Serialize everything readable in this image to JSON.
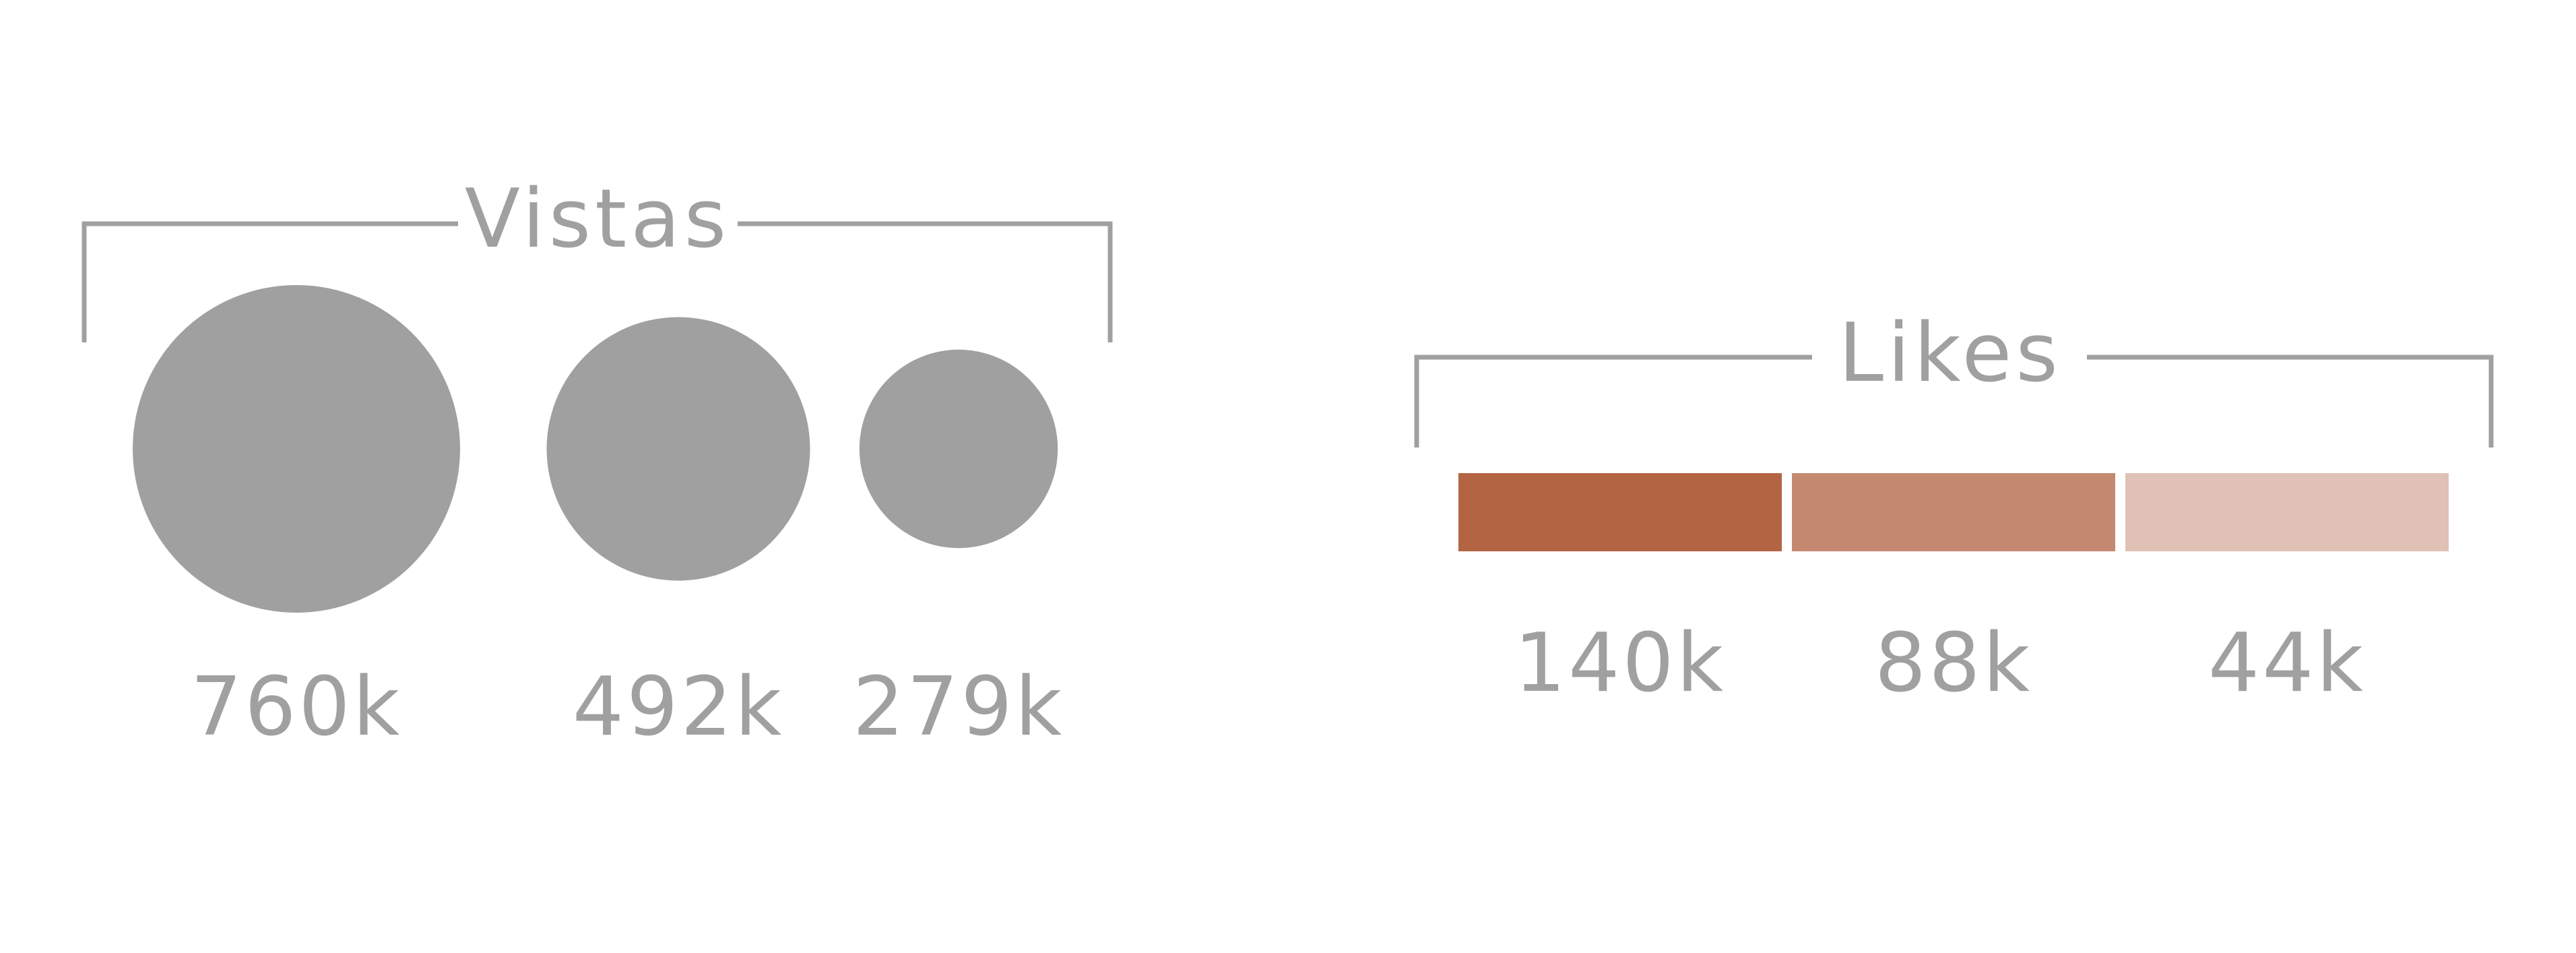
{
  "chart_data": [
    {
      "type": "bubble",
      "title": "Vistas",
      "categories": [
        "",
        "",
        ""
      ],
      "values": [
        760,
        492,
        279
      ],
      "labels": [
        "760k",
        "492k",
        "279k"
      ],
      "unit": "k",
      "color": "#a0a0a0"
    },
    {
      "type": "bar",
      "title": "Likes",
      "stacked": "horizontal",
      "values": [
        140,
        88,
        44
      ],
      "labels": [
        "140k",
        "88k",
        "44k"
      ],
      "unit": "k",
      "colors": [
        "#b36442",
        "#c58870",
        "#e0c1b5"
      ]
    }
  ]
}
